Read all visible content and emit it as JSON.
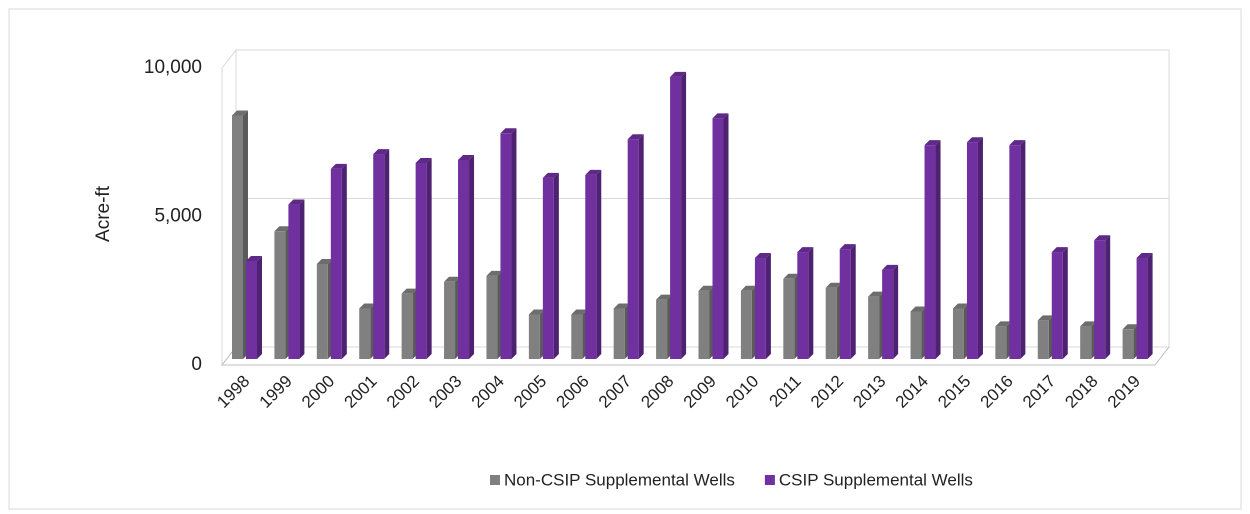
{
  "chart_data": {
    "type": "bar",
    "ylabel": "Acre-ft",
    "categories": [
      "1998",
      "1999",
      "2000",
      "2001",
      "2002",
      "2003",
      "2004",
      "2005",
      "2006",
      "2007",
      "2008",
      "2009",
      "2010",
      "2011",
      "2012",
      "2013",
      "2014",
      "2015",
      "2016",
      "2017",
      "2018",
      "2019"
    ],
    "series": [
      {
        "name": "Non-CSIP Supplemental Wells",
        "color": "#808080",
        "values": [
          8200,
          4300,
          3200,
          1700,
          2200,
          2600,
          2800,
          1500,
          1500,
          1700,
          2000,
          2300,
          2300,
          2700,
          2400,
          2100,
          1600,
          1700,
          1100,
          1300,
          1100,
          1000
        ]
      },
      {
        "name": "CSIP Supplemental Wells",
        "color": "#7030a0",
        "values": [
          3300,
          5200,
          6400,
          6900,
          6600,
          6700,
          7600,
          6100,
          6200,
          7400,
          9500,
          8100,
          3400,
          3600,
          3700,
          3000,
          7200,
          7300,
          7200,
          3600,
          4000,
          3400
        ]
      }
    ],
    "ylim": [
      0,
      10000
    ],
    "yticks": [
      0,
      {
        "value": 5000,
        "label": "5,000"
      },
      {
        "value": 10000,
        "label": "10,000"
      }
    ],
    "grid": true
  }
}
